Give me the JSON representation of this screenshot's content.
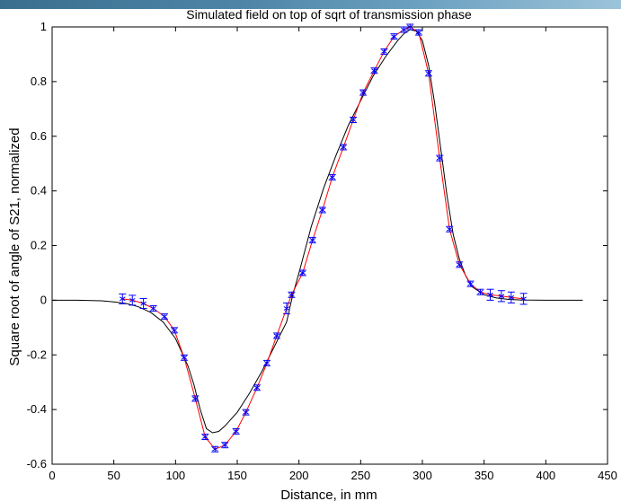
{
  "chart_data": {
    "type": "line",
    "title": "Simulated field on top of sqrt of transmission phase",
    "xlabel": "Distance, in mm",
    "ylabel": "Square root of angle of S21, normalized",
    "xlim": [
      0,
      450
    ],
    "ylim": [
      -0.6,
      1
    ],
    "xticks": [
      0,
      50,
      100,
      150,
      200,
      250,
      300,
      350,
      400,
      450
    ],
    "yticks": [
      -0.6,
      -0.4,
      -0.2,
      0,
      0.2,
      0.4,
      0.6,
      0.8,
      1
    ],
    "grid": false,
    "colors": {
      "simulated": "#000000",
      "fit": "#ff0000",
      "measured": "#0000ff"
    },
    "series": [
      {
        "kind": "line",
        "color": "#000000",
        "x": [
          0,
          20,
          40,
          50,
          60,
          70,
          80,
          90,
          100,
          110,
          115,
          120,
          125,
          130,
          135,
          140,
          150,
          160,
          170,
          180,
          190,
          195,
          200,
          210,
          220,
          230,
          240,
          250,
          260,
          270,
          280,
          285,
          290,
          295,
          300,
          305,
          310,
          315,
          320,
          325,
          330,
          335,
          340,
          350,
          360,
          370,
          380,
          400,
          430
        ],
        "y": [
          0,
          0,
          -0.002,
          -0.006,
          -0.012,
          -0.024,
          -0.045,
          -0.08,
          -0.14,
          -0.24,
          -0.31,
          -0.4,
          -0.47,
          -0.485,
          -0.48,
          -0.46,
          -0.41,
          -0.34,
          -0.26,
          -0.17,
          -0.08,
          0.02,
          0.1,
          0.27,
          0.41,
          0.53,
          0.64,
          0.73,
          0.82,
          0.89,
          0.95,
          0.975,
          0.99,
          0.985,
          0.95,
          0.86,
          0.72,
          0.55,
          0.38,
          0.24,
          0.15,
          0.09,
          0.05,
          0.02,
          0.008,
          0.003,
          0.001,
          0,
          0
        ]
      },
      {
        "kind": "line",
        "color": "#ff0000",
        "x": [
          57,
          65,
          74,
          82,
          91,
          99,
          107,
          116,
          124,
          132,
          140,
          149,
          157,
          166,
          174,
          182,
          190,
          194,
          203,
          211,
          219,
          227,
          236,
          244,
          252,
          261,
          269,
          277,
          285,
          290,
          297,
          305,
          314,
          322,
          330,
          339,
          347,
          355,
          364,
          372,
          382
        ],
        "y": [
          0.005,
          0,
          -0.012,
          -0.03,
          -0.06,
          -0.11,
          -0.21,
          -0.36,
          -0.5,
          -0.545,
          -0.53,
          -0.48,
          -0.41,
          -0.32,
          -0.23,
          -0.13,
          -0.03,
          0.02,
          0.1,
          0.22,
          0.33,
          0.45,
          0.56,
          0.66,
          0.76,
          0.84,
          0.91,
          0.965,
          0.99,
          1.0,
          0.98,
          0.83,
          0.52,
          0.26,
          0.13,
          0.06,
          0.03,
          0.02,
          0.015,
          0.01,
          0.005
        ]
      },
      {
        "kind": "errorbar",
        "color": "#0000ff",
        "x": [
          57,
          65,
          74,
          82,
          91,
          99,
          107,
          116,
          124,
          132,
          140,
          149,
          157,
          166,
          174,
          182,
          190,
          194,
          203,
          211,
          219,
          227,
          236,
          244,
          252,
          261,
          269,
          277,
          285,
          290,
          297,
          305,
          314,
          322,
          330,
          339,
          347,
          355,
          364,
          372,
          382
        ],
        "y": [
          0.005,
          0,
          -0.012,
          -0.03,
          -0.06,
          -0.11,
          -0.21,
          -0.36,
          -0.5,
          -0.545,
          -0.53,
          -0.48,
          -0.41,
          -0.32,
          -0.23,
          -0.13,
          -0.03,
          0.02,
          0.1,
          0.22,
          0.33,
          0.45,
          0.56,
          0.66,
          0.76,
          0.84,
          0.91,
          0.965,
          0.99,
          1.0,
          0.98,
          0.83,
          0.52,
          0.26,
          0.13,
          0.06,
          0.03,
          0.02,
          0.015,
          0.01,
          0.005
        ],
        "err": [
          0.018,
          0.018,
          0.018,
          0.01,
          0.008,
          0.008,
          0.008,
          0.008,
          0.008,
          0.008,
          0.008,
          0.008,
          0.008,
          0.008,
          0.008,
          0.008,
          0.02,
          0.008,
          0.008,
          0.008,
          0.008,
          0.008,
          0.008,
          0.008,
          0.008,
          0.008,
          0.008,
          0.008,
          0.008,
          0.008,
          0.008,
          0.008,
          0.01,
          0.008,
          0.008,
          0.008,
          0.01,
          0.02,
          0.02,
          0.02,
          0.02
        ]
      }
    ]
  }
}
